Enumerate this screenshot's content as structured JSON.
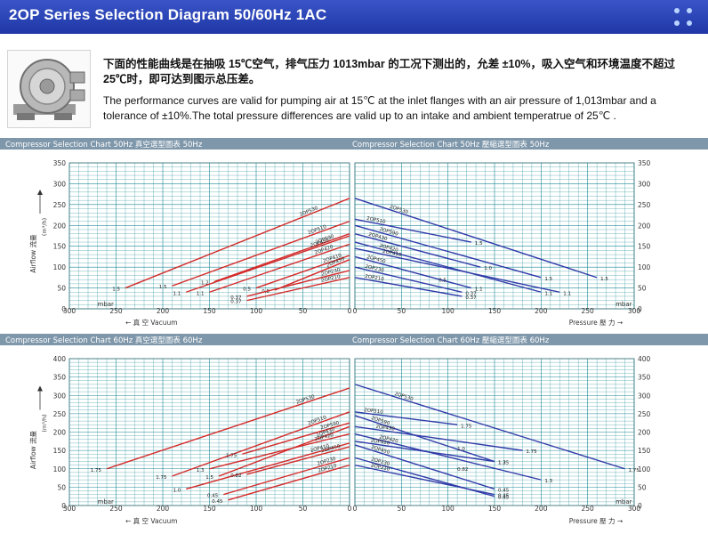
{
  "header": {
    "title": "2OP Series Selection Diagram 50/60Hz 1AC"
  },
  "description": {
    "cn": "下面的性能曲线是在抽吸 15℃空气，排气压力 1013mbar 的工况下测出的，允差 ±10%，吸入空气和环境温度不超过 25℃时，即可达到图示总压差。",
    "en": "The performance curves are valid for pumping air at 15℃ at the inlet flanges with an air pressure of 1,013mbar and a tolerance of ±10%.The total pressure differences are valid up to an intake and ambient temperatrue of 25℃ ."
  },
  "colors": {
    "vacuum": "#d42a2a",
    "pressure": "#2f3aa8",
    "grid": "#1a8a96",
    "header_bg": "#2a44b8",
    "panel_header": "#7f97aa"
  },
  "chart_data": [
    {
      "type": "line",
      "panel": "Compressor Selection Chart 50Hz",
      "title_left": "Compressor Selection Chart 50Hz  真空選型圖表 50Hz",
      "title_right": "Compressor Selection Chart 50Hz  壓縮選型圖表 50Hz",
      "ylabel": "Airflow 流量",
      "yunit": "(m³/h)",
      "ylim": [
        0,
        350
      ],
      "yticks": [
        0,
        50,
        100,
        150,
        200,
        250,
        300,
        350
      ],
      "vacuum": {
        "xlabel": "真 空 Vacuum",
        "xunit": "mbar",
        "xlim": [
          300,
          0
        ],
        "xticks": [
          300,
          250,
          200,
          150,
          100,
          50,
          0
        ],
        "series": [
          {
            "name": "2OP530",
            "x": [
              240,
              0
            ],
            "y": [
              50,
              265
            ],
            "end_label": "1.5"
          },
          {
            "name": "2OP510",
            "x": [
              190,
              0
            ],
            "y": [
              55,
              210
            ],
            "end_label": "1.5"
          },
          {
            "name": "2OP590",
            "x": [
              145,
              0
            ],
            "y": [
              65,
              180
            ],
            "end_label": "1.2"
          },
          {
            "name": "2OP430",
            "x": [
              175,
              0
            ],
            "y": [
              40,
              175
            ],
            "end_label": "1.1"
          },
          {
            "name": "2OP420",
            "x": [
              150,
              0
            ],
            "y": [
              40,
              155
            ],
            "end_label": "1.1"
          },
          {
            "name": "2OP410",
            "x": [
              100,
              0
            ],
            "y": [
              50,
              128
            ],
            "end_label": "0.5"
          },
          {
            "name": "2OP450",
            "x": [
              80,
              0
            ],
            "y": [
              45,
              118
            ],
            "end_label": "0.5"
          },
          {
            "name": "2OP230",
            "x": [
              110,
              0
            ],
            "y": [
              30,
              92
            ],
            "end_label": "0.37"
          },
          {
            "name": "2OP210",
            "x": [
              110,
              0
            ],
            "y": [
              20,
              75
            ],
            "end_label": "0.37"
          }
        ]
      },
      "pressure": {
        "xlabel": "Pressure 壓 力",
        "xunit": "mbar",
        "xlim": [
          0,
          300
        ],
        "xticks": [
          0,
          50,
          100,
          150,
          200,
          250,
          300
        ],
        "series": [
          {
            "name": "2OP530",
            "x": [
              0,
              260
            ],
            "y": [
              265,
              75
            ],
            "end_label": "1.5"
          },
          {
            "name": "2OP510",
            "x": [
              0,
              125
            ],
            "y": [
              215,
              160
            ],
            "end_label": "1.5"
          },
          {
            "name": "2OP590",
            "x": [
              0,
              200
            ],
            "y": [
              200,
              75
            ],
            "end_label": "1.5"
          },
          {
            "name": "2OP430",
            "x": [
              0,
              135
            ],
            "y": [
              180,
              100
            ],
            "end_label": "1.0"
          },
          {
            "name": "2OP420",
            "x": [
              0,
              200
            ],
            "y": [
              160,
              40
            ],
            "end_label": "1.1"
          },
          {
            "name": "2OP410",
            "x": [
              0,
              220
            ],
            "y": [
              145,
              40
            ],
            "end_label": "1.1"
          },
          {
            "name": "2OP450",
            "x": [
              0,
              125
            ],
            "y": [
              125,
              50
            ],
            "end_label": "1.1"
          },
          {
            "name": "2OP230",
            "x": [
              0,
              115
            ],
            "y": [
              100,
              40
            ],
            "end_label": "0.37"
          },
          {
            "name": "2OP210",
            "x": [
              0,
              115
            ],
            "y": [
              75,
              30
            ],
            "end_label": "0.37"
          }
        ],
        "extra_labels": [
          {
            "text": "0.5",
            "x": 90,
            "y": 65
          }
        ]
      }
    },
    {
      "type": "line",
      "panel": "Compressor Selection Chart 60Hz",
      "title_left": "Compressor Selection Chart 60Hz  真空選型圖表 60Hz",
      "title_right": "Compressor Selection Chart 60Hz  壓縮選型圖表 60Hz",
      "ylabel": "Airflow 流量",
      "yunit": "(m³/h)",
      "ylim": [
        0,
        400
      ],
      "yticks": [
        0,
        50,
        100,
        150,
        200,
        250,
        300,
        350,
        400
      ],
      "vacuum": {
        "xlabel": "真 空 Vacuum",
        "xunit": "mbar",
        "xlim": [
          300,
          0
        ],
        "xticks": [
          300,
          250,
          200,
          150,
          100,
          50,
          0
        ],
        "series": [
          {
            "name": "2OP530",
            "x": [
              260,
              0
            ],
            "y": [
              100,
              320
            ],
            "end_label": "1.75"
          },
          {
            "name": "2OP510",
            "x": [
              190,
              0
            ],
            "y": [
              80,
              255
            ],
            "end_label": "1.75"
          },
          {
            "name": "2OP590",
            "x": [
              115,
              0
            ],
            "y": [
              140,
              225
            ],
            "end_label": "1.75"
          },
          {
            "name": "2OP430",
            "x": [
              140,
              0
            ],
            "y": [
              80,
              215
            ],
            "end_label": "1.5"
          },
          {
            "name": "2OP420",
            "x": [
              150,
              0
            ],
            "y": [
              100,
              195
            ],
            "end_label": "1.3"
          },
          {
            "name": "2OP410",
            "x": [
              175,
              0
            ],
            "y": [
              45,
              170
            ],
            "end_label": "1.0"
          },
          {
            "name": "2OP450",
            "x": [
              110,
              0
            ],
            "y": [
              85,
              160
            ],
            "end_label": "0.82"
          },
          {
            "name": "2OP230",
            "x": [
              135,
              0
            ],
            "y": [
              30,
              130
            ],
            "end_label": "0.45"
          },
          {
            "name": "2OP210",
            "x": [
              130,
              0
            ],
            "y": [
              15,
              110
            ],
            "end_label": "0.45"
          }
        ]
      },
      "pressure": {
        "xlabel": "Pressure 壓 力",
        "xunit": "mbar",
        "xlim": [
          0,
          300
        ],
        "xticks": [
          0,
          50,
          100,
          150,
          200,
          250,
          300
        ],
        "series": [
          {
            "name": "2OP530",
            "x": [
              0,
              290
            ],
            "y": [
              330,
              100
            ],
            "end_label": "1.75"
          },
          {
            "name": "2OP510",
            "x": [
              0,
              110
            ],
            "y": [
              255,
              220
            ],
            "end_label": "1.75"
          },
          {
            "name": "2OP590",
            "x": [
              0,
              150
            ],
            "y": [
              245,
              120
            ],
            "end_label": "1.75"
          },
          {
            "name": "2OP430",
            "x": [
              0,
              180
            ],
            "y": [
              215,
              150
            ],
            "end_label": "1.75"
          },
          {
            "name": "2OP420",
            "x": [
              0,
              200
            ],
            "y": [
              195,
              70
            ],
            "end_label": "1.3"
          },
          {
            "name": "2OP410",
            "x": [
              0,
              150
            ],
            "y": [
              175,
              120
            ],
            "end_label": "1.3"
          },
          {
            "name": "2OP450",
            "x": [
              0,
              150
            ],
            "y": [
              165,
              45
            ],
            "end_label": "0.45"
          },
          {
            "name": "2OP230",
            "x": [
              0,
              150
            ],
            "y": [
              130,
              25
            ],
            "end_label": "0.45"
          },
          {
            "name": "2OP210",
            "x": [
              0,
              150
            ],
            "y": [
              110,
              30
            ],
            "end_label": "0.45"
          }
        ],
        "extra_labels": [
          {
            "text": "0.82",
            "x": 110,
            "y": 95
          },
          {
            "text": "1.0",
            "x": 110,
            "y": 150
          }
        ]
      }
    }
  ]
}
